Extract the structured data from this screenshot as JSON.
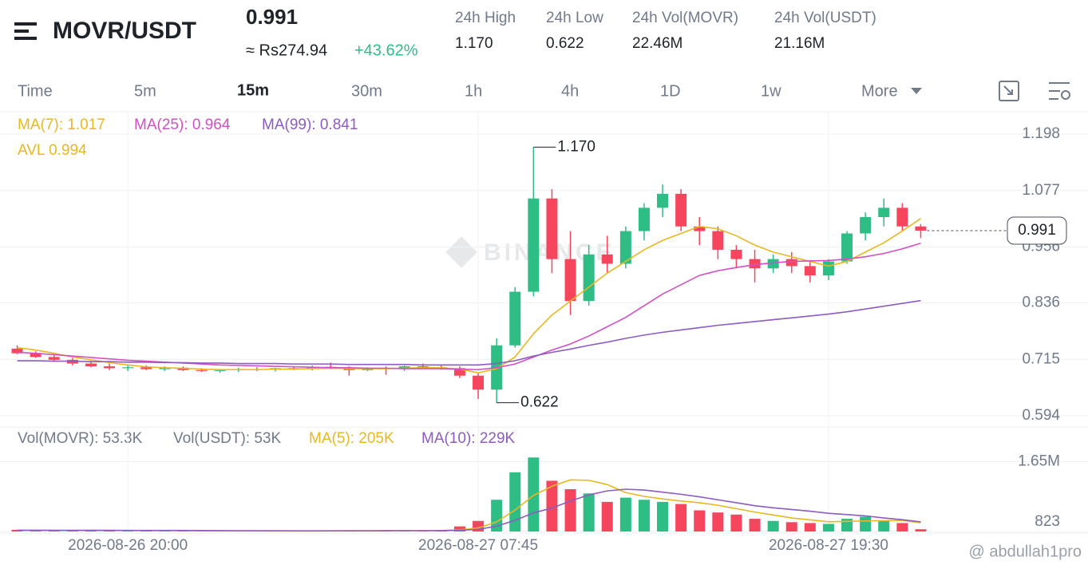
{
  "header": {
    "symbol": "MOVR/USDT",
    "price": "0.991",
    "fiat": "≈ Rs274.94",
    "change": "+43.62%",
    "stats": [
      {
        "label": "24h High",
        "value": "1.170"
      },
      {
        "label": "24h Low",
        "value": "0.622"
      },
      {
        "label": "24h Vol(MOVR)",
        "value": "22.46M"
      },
      {
        "label": "24h Vol(USDT)",
        "value": "21.16M"
      }
    ]
  },
  "tabs": [
    "Time",
    "5m",
    "15m",
    "30m",
    "1h",
    "4h",
    "1D",
    "1w",
    "More"
  ],
  "credit": "@ abdullah1pro",
  "chart_data": {
    "type": "candlestick",
    "watermark": "BINANCE",
    "avl": "AVL 0.994",
    "up_color": "#2ebd85",
    "down_color": "#f6465d",
    "categories": [
      null,
      null,
      null,
      null,
      null,
      null,
      "2026-08-26 20:00",
      null,
      null,
      null,
      null,
      null,
      null,
      null,
      null,
      null,
      null,
      null,
      null,
      null,
      null,
      null,
      null,
      null,
      null,
      "2026-08-27 07:45",
      null,
      null,
      null,
      null,
      null,
      null,
      null,
      null,
      null,
      null,
      null,
      null,
      null,
      null,
      null,
      null,
      null,
      null,
      "2026-08-27 19:30",
      null,
      null,
      null,
      null,
      null
    ],
    "open": [
      0.738,
      0.728,
      0.72,
      0.714,
      0.706,
      0.7,
      0.696,
      0.698,
      0.694,
      0.697,
      0.692,
      0.69,
      0.692,
      0.694,
      0.693,
      0.696,
      0.695,
      0.699,
      0.697,
      0.692,
      0.696,
      0.694,
      0.7,
      0.698,
      0.696,
      0.68,
      0.65,
      0.745,
      0.86,
      1.06,
      0.93,
      0.84,
      0.94,
      0.92,
      0.99,
      1.04,
      1.07,
      1.0,
      0.99,
      0.95,
      0.93,
      0.91,
      0.93,
      0.915,
      0.895,
      0.925,
      0.985,
      1.02,
      1.04,
      1.0
    ],
    "high": [
      0.745,
      0.732,
      0.725,
      0.718,
      0.712,
      0.706,
      0.702,
      0.702,
      0.7,
      0.7,
      0.696,
      0.694,
      0.697,
      0.698,
      0.697,
      0.7,
      0.702,
      0.708,
      0.7,
      0.698,
      0.7,
      0.702,
      0.706,
      0.702,
      0.7,
      0.686,
      0.76,
      0.87,
      1.17,
      1.08,
      0.99,
      0.96,
      0.98,
      1.0,
      1.05,
      1.09,
      1.08,
      1.02,
      1.0,
      0.96,
      0.95,
      0.94,
      0.945,
      0.925,
      0.93,
      0.99,
      1.03,
      1.06,
      1.05,
      1.005
    ],
    "low": [
      0.726,
      0.718,
      0.71,
      0.702,
      0.698,
      0.692,
      0.69,
      0.692,
      0.69,
      0.69,
      0.688,
      0.686,
      0.688,
      0.69,
      0.689,
      0.692,
      0.691,
      0.694,
      0.68,
      0.69,
      0.682,
      0.69,
      0.695,
      0.693,
      0.675,
      0.63,
      0.622,
      0.74,
      0.85,
      0.9,
      0.81,
      0.83,
      0.9,
      0.91,
      0.97,
      1.02,
      0.99,
      0.96,
      0.93,
      0.91,
      0.88,
      0.9,
      0.9,
      0.88,
      0.885,
      0.92,
      0.97,
      1.0,
      0.99,
      0.975
    ],
    "close": [
      0.728,
      0.72,
      0.714,
      0.706,
      0.7,
      0.696,
      0.698,
      0.694,
      0.697,
      0.692,
      0.69,
      0.692,
      0.694,
      0.693,
      0.696,
      0.695,
      0.699,
      0.697,
      0.692,
      0.696,
      0.694,
      0.7,
      0.698,
      0.696,
      0.68,
      0.65,
      0.745,
      0.86,
      1.06,
      0.93,
      0.84,
      0.94,
      0.92,
      0.99,
      1.04,
      1.07,
      1.0,
      0.99,
      0.95,
      0.93,
      0.91,
      0.93,
      0.915,
      0.895,
      0.925,
      0.985,
      1.02,
      1.04,
      1.0,
      0.991
    ],
    "series": [
      {
        "name": "MA(7): 1.017",
        "color": "#e8b820",
        "values": [
          0.74,
          0.735,
          0.728,
          0.72,
          0.714,
          0.708,
          0.703,
          0.699,
          0.697,
          0.696,
          0.694,
          0.693,
          0.693,
          0.693,
          0.694,
          0.694,
          0.695,
          0.696,
          0.695,
          0.695,
          0.695,
          0.696,
          0.697,
          0.697,
          0.694,
          0.686,
          0.695,
          0.72,
          0.77,
          0.81,
          0.84,
          0.87,
          0.9,
          0.925,
          0.95,
          0.97,
          0.985,
          1.0,
          0.995,
          0.98,
          0.96,
          0.945,
          0.935,
          0.925,
          0.915,
          0.925,
          0.945,
          0.965,
          0.99,
          1.017
        ]
      },
      {
        "name": "MA(25): 0.964",
        "color": "#d24fc4",
        "values": [
          0.73,
          0.728,
          0.725,
          0.722,
          0.719,
          0.716,
          0.713,
          0.711,
          0.709,
          0.707,
          0.705,
          0.703,
          0.702,
          0.701,
          0.7,
          0.699,
          0.698,
          0.697,
          0.697,
          0.696,
          0.696,
          0.695,
          0.695,
          0.695,
          0.694,
          0.693,
          0.697,
          0.705,
          0.72,
          0.735,
          0.748,
          0.765,
          0.785,
          0.805,
          0.83,
          0.855,
          0.875,
          0.895,
          0.905,
          0.912,
          0.918,
          0.922,
          0.925,
          0.926,
          0.927,
          0.93,
          0.935,
          0.942,
          0.952,
          0.964
        ]
      },
      {
        "name": "MA(99): 0.841",
        "color": "#8c5cc0",
        "values": [
          0.712,
          0.712,
          0.711,
          0.711,
          0.71,
          0.71,
          0.709,
          0.709,
          0.708,
          0.708,
          0.707,
          0.707,
          0.706,
          0.706,
          0.706,
          0.705,
          0.705,
          0.705,
          0.704,
          0.704,
          0.704,
          0.704,
          0.703,
          0.703,
          0.703,
          0.703,
          0.706,
          0.712,
          0.722,
          0.73,
          0.737,
          0.745,
          0.752,
          0.76,
          0.767,
          0.773,
          0.778,
          0.783,
          0.788,
          0.792,
          0.796,
          0.8,
          0.804,
          0.808,
          0.812,
          0.817,
          0.823,
          0.829,
          0.835,
          0.841
        ]
      }
    ],
    "ylim": [
      0.57,
      1.246
    ],
    "yticks": [
      1.198,
      1.077,
      0.956,
      0.836,
      0.715,
      0.594
    ],
    "grid": true,
    "annotations": [
      {
        "label": "1.170",
        "value": 1.17,
        "at": "high"
      },
      {
        "label": "0.622",
        "value": 0.622,
        "at": "low"
      }
    ],
    "last_price": 0.991,
    "volume": {
      "legend": [
        "Vol(MOVR): 53.3K",
        "Vol(USDT): 53K"
      ],
      "values": [
        40000,
        30000,
        25000,
        20000,
        30000,
        25000,
        20000,
        15000,
        18000,
        15000,
        20000,
        12000,
        15000,
        10000,
        12000,
        10000,
        15000,
        20000,
        30000,
        15000,
        35000,
        15000,
        12000,
        15000,
        120000,
        250000,
        750000,
        1400000,
        1750000,
        1200000,
        1000000,
        900000,
        700000,
        800000,
        750000,
        700000,
        650000,
        500000,
        450000,
        400000,
        300000,
        250000,
        220000,
        200000,
        180000,
        300000,
        350000,
        250000,
        200000,
        53300
      ],
      "series": [
        {
          "name": "MA(5): 205K",
          "color": "#e8b820",
          "values": [
            30000,
            28000,
            27000,
            26000,
            29000,
            26000,
            24000,
            22000,
            21000,
            20000,
            17600,
            16000,
            16400,
            14800,
            13800,
            13800,
            12400,
            14400,
            17800,
            18000,
            23000,
            23000,
            21400,
            24400,
            39400,
            83400,
            228400,
            507000,
            853000,
            1070000,
            1220000,
            1210000,
            1110000,
            920000,
            830000,
            770000,
            720000,
            680000,
            620000,
            540000,
            460000,
            390000,
            320000,
            274000,
            230000,
            240000,
            250000,
            256000,
            260000,
            205000
          ]
        },
        {
          "name": "MA(10): 229K",
          "color": "#8c5cc0",
          "values": [
            30000,
            29000,
            28000,
            27000,
            28000,
            27000,
            26000,
            25000,
            24000,
            24000,
            22000,
            20000,
            19000,
            18000,
            17000,
            16000,
            15000,
            15000,
            16000,
            16000,
            18000,
            19000,
            19000,
            20000,
            29000,
            50000,
            125000,
            265000,
            440000,
            555000,
            720000,
            865000,
            960000,
            1000000,
            980000,
            930000,
            880000,
            820000,
            750000,
            680000,
            610000,
            560000,
            520000,
            480000,
            430000,
            400000,
            370000,
            320000,
            280000,
            229000
          ]
        }
      ],
      "ylim": [
        0,
        2000000
      ],
      "yticks": [
        {
          "value": 1650000,
          "label": "1.65M"
        },
        823
      ]
    }
  }
}
